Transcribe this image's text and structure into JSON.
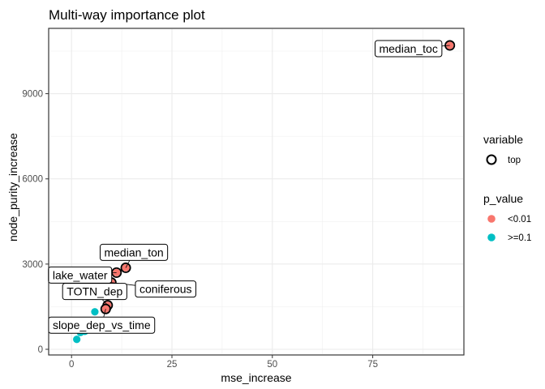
{
  "chart_data": {
    "type": "scatter",
    "title": "Multi-way importance plot",
    "xlabel": "mse_increase",
    "ylabel": "node_purity_increase",
    "xlim": [
      -5.7,
      97.7
    ],
    "ylim": [
      -200,
      11300
    ],
    "xticks": [
      0,
      25,
      50,
      75
    ],
    "yticks": [
      0,
      3000,
      6000,
      9000
    ],
    "grid": true,
    "legend_position": "right",
    "legend": {
      "variable": {
        "title": "variable",
        "items": [
          {
            "label": "top",
            "shape": "open-circle",
            "color": "#000000"
          }
        ]
      },
      "p_value": {
        "title": "p_value",
        "items": [
          {
            "label": "<0.01",
            "color": "#F8766D"
          },
          {
            "label": ">=0.1",
            "color": "#00BFC4"
          }
        ]
      }
    },
    "points": [
      {
        "x": 94.2,
        "y": 10700,
        "p_value": "<0.01",
        "top": true,
        "label": "median_toc"
      },
      {
        "x": 13.5,
        "y": 2870,
        "p_value": "<0.01",
        "top": true,
        "label": "median_ton"
      },
      {
        "x": 11.2,
        "y": 2700,
        "p_value": "<0.01",
        "top": true,
        "label": "lake_water"
      },
      {
        "x": 9.9,
        "y": 2350,
        "p_value": "<0.01",
        "top": true,
        "label": "coniferous"
      },
      {
        "x": 9.0,
        "y": 1550,
        "p_value": "<0.01",
        "top": true,
        "label": "TOTN_dep"
      },
      {
        "x": 8.5,
        "y": 1420,
        "p_value": "<0.01",
        "top": true,
        "label": "slope_dep_vs_time"
      },
      {
        "x": 5.8,
        "y": 1320,
        "p_value": ">=0.1",
        "top": false,
        "label": ""
      },
      {
        "x": 3.3,
        "y": 630,
        "p_value": ">=0.1",
        "top": false,
        "label": ""
      },
      {
        "x": 2.2,
        "y": 590,
        "p_value": ">=0.1",
        "top": false,
        "label": ""
      },
      {
        "x": 1.3,
        "y": 350,
        "p_value": ">=0.1",
        "top": false,
        "label": ""
      }
    ]
  }
}
